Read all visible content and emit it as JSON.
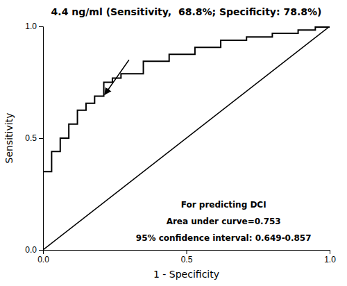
{
  "chart_data": {
    "type": "line",
    "title": "4.4 ng/ml (Sensitivity,  68.8%; Specificity: 78.8%)",
    "x_label": "1 - Specificity",
    "y_label": "Sensitivity",
    "xlim": [
      0.0,
      1.0
    ],
    "ylim": [
      0.0,
      1.0
    ],
    "xticks": [
      {
        "value": 0.0,
        "label": "0.0"
      },
      0.5,
      {
        "value": 1.0,
        "label": "1.0"
      }
    ],
    "yticks": [
      {
        "value": 0.0,
        "label": "0.0"
      },
      0.5,
      {
        "value": 1.0,
        "label": "1.0"
      }
    ],
    "grid": false,
    "series": [
      {
        "color": "#000000",
        "x": [
          0.0,
          0.0,
          0.0,
          0.03,
          0.03,
          0.06,
          0.06,
          0.09,
          0.09,
          0.12,
          0.12,
          0.15,
          0.15,
          0.18,
          0.18,
          0.212,
          0.212,
          0.242,
          0.242,
          0.272,
          0.272,
          0.35,
          0.35,
          0.44,
          0.44,
          0.53,
          0.53,
          0.62,
          0.62,
          0.71,
          0.71,
          0.8,
          0.8,
          0.89,
          0.89,
          0.95,
          0.95,
          1.0,
          1.0
        ],
        "values": [
          0.0,
          0.1,
          0.35,
          0.35,
          0.44,
          0.44,
          0.5,
          0.5,
          0.563,
          0.563,
          0.625,
          0.625,
          0.656,
          0.656,
          0.688,
          0.688,
          0.75,
          0.75,
          0.769,
          0.769,
          0.788,
          0.788,
          0.844,
          0.844,
          0.875,
          0.875,
          0.906,
          0.906,
          0.938,
          0.938,
          0.953,
          0.953,
          0.969,
          0.969,
          0.984,
          0.984,
          0.9969,
          0.9969,
          1.0
        ]
      },
      {
        "color": "#000000",
        "x": [
          0,
          1
        ],
        "values": [
          0,
          1
        ]
      }
    ],
    "annotations": [
      {
        "text": "For predicting DCI",
        "x": 0.63,
        "y": 0.2
      },
      {
        "text": "Area under curve=0.753",
        "x": 0.63,
        "y": 0.125
      },
      {
        "text": "95% confidence interval: 0.649-0.857",
        "x": 0.63,
        "y": 0.05
      }
    ],
    "arrow": {
      "x": [
        0.3,
        0.215
      ],
      "y": [
        0.85,
        0.695
      ]
    }
  }
}
